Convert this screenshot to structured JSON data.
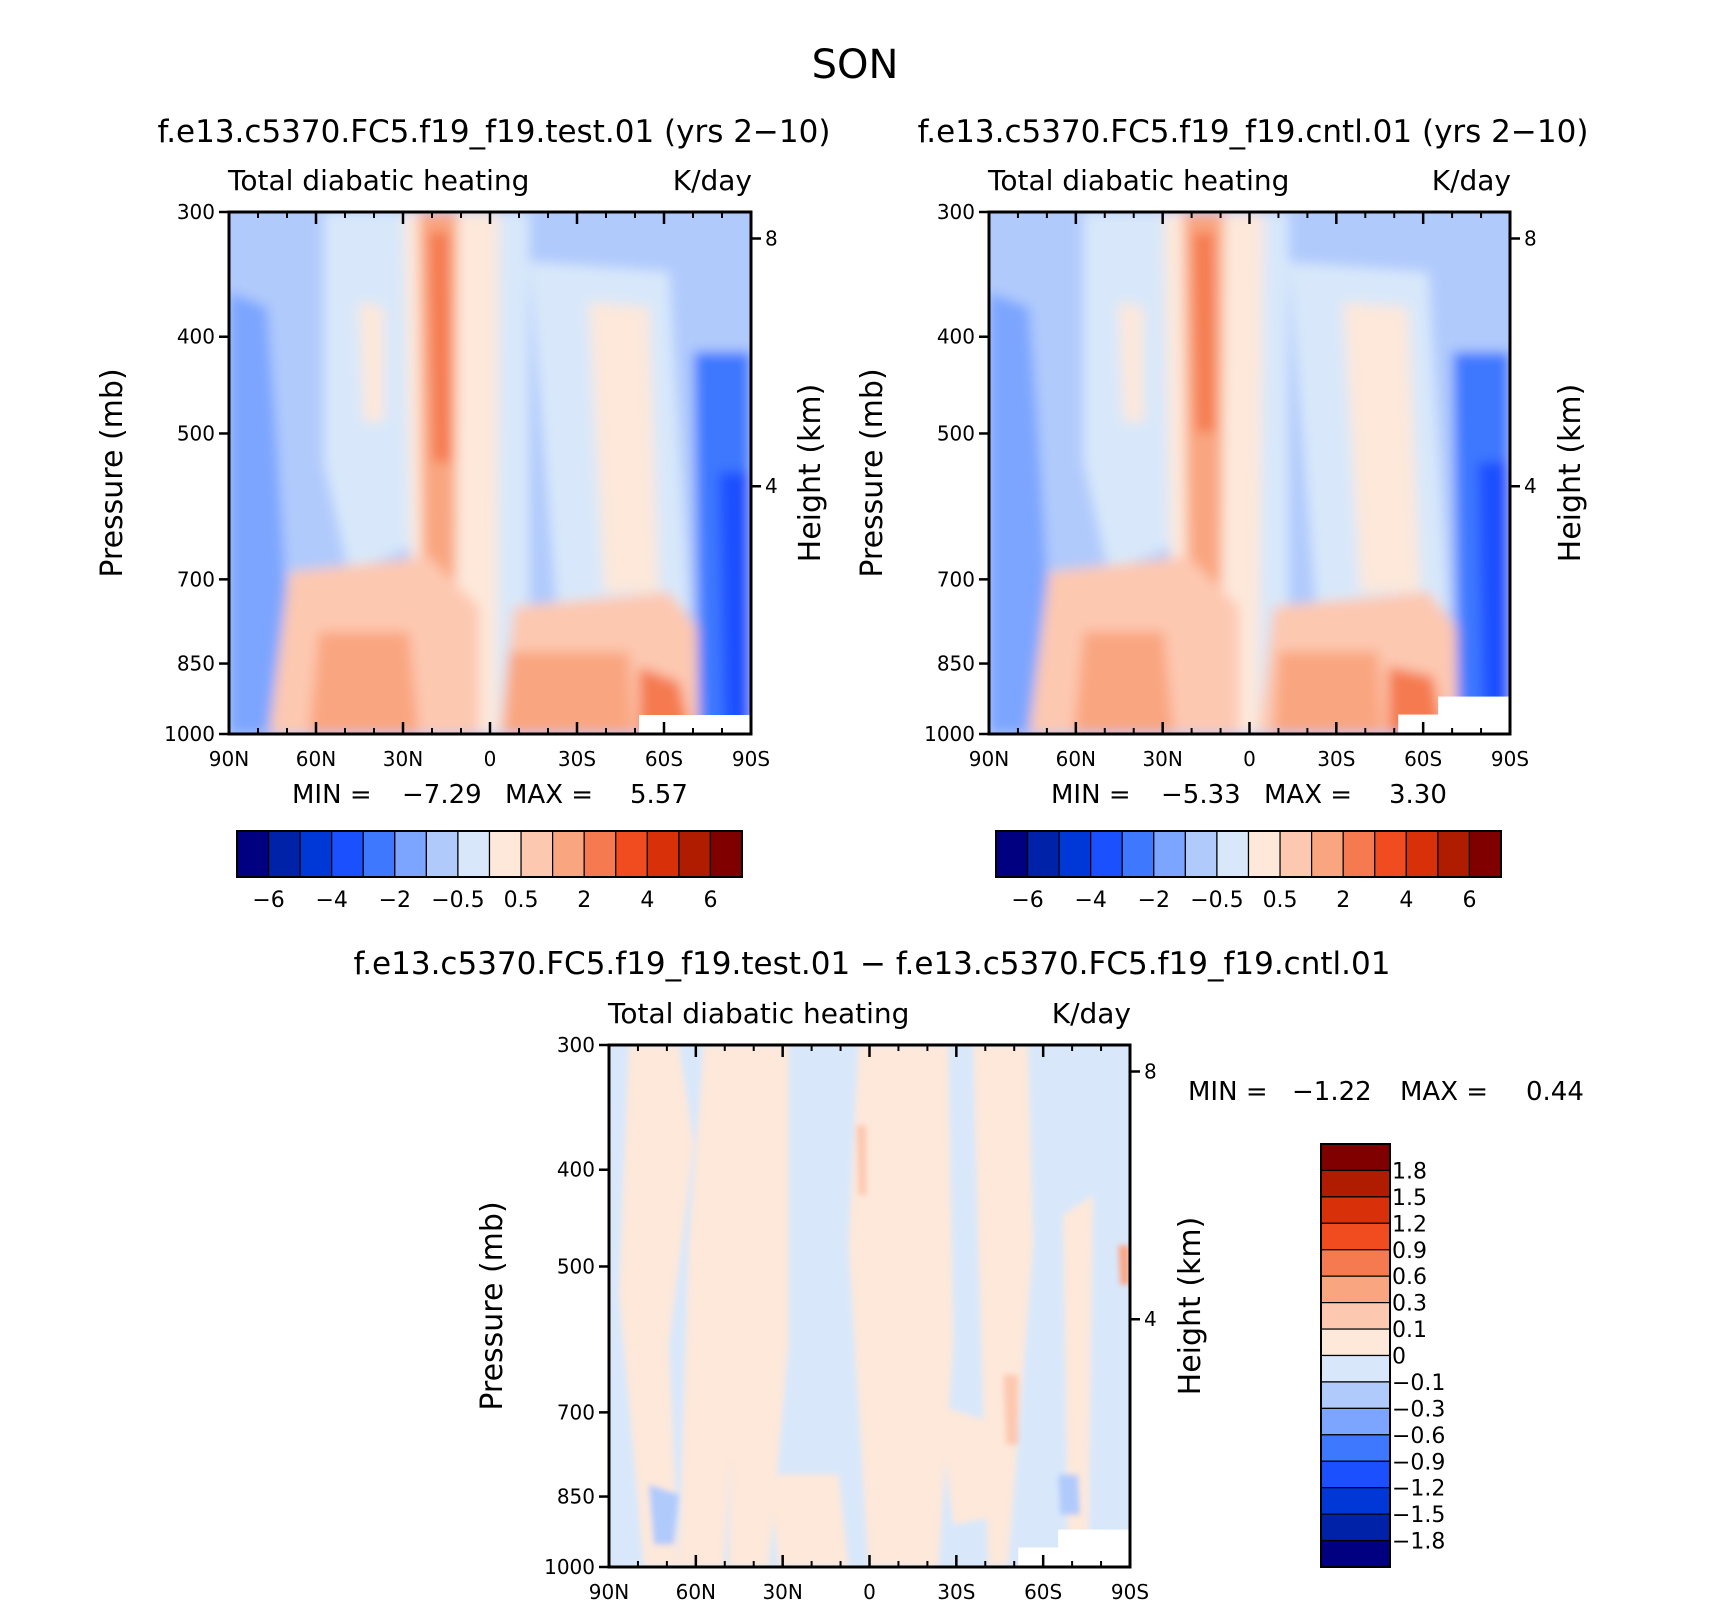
{
  "page": {
    "title": "SON"
  },
  "chart_data": [
    {
      "type": "contour",
      "title": "f.e13.c5370.FC5.f19_f19.test.01 (yrs 2−10)",
      "left_label": "Total diabatic heating",
      "right_label": "K/day",
      "xlabel": "",
      "ylabel": "Pressure (mb)",
      "y2label": "Height (km)",
      "x_ticks": [
        "90N",
        "60N",
        "30N",
        "0",
        "30S",
        "60S",
        "90S"
      ],
      "x_values": [
        90,
        60,
        30,
        0,
        -30,
        -60,
        -90
      ],
      "y_ticks": [
        300,
        400,
        500,
        700,
        850,
        1000
      ],
      "y2_ticks": [
        8,
        4
      ],
      "ylim": [
        1000,
        300
      ],
      "stats": {
        "min_label": "MIN =",
        "min": "−7.29",
        "max_label": "MAX =",
        "max": "5.57"
      },
      "colorbar": {
        "orientation": "horizontal",
        "labels": [
          "−6",
          "−4",
          "−2",
          "−0.5",
          "0.5",
          "2",
          "4",
          "6"
        ],
        "colors": [
          "#000080",
          "#0022a8",
          "#0038d8",
          "#1a50ff",
          "#3d78ff",
          "#7ca5ff",
          "#b0cafc",
          "#d8e8fa",
          "#fde8da",
          "#fdc8b0",
          "#f9a680",
          "#f57a50",
          "#f04c20",
          "#d83008",
          "#b01c00",
          "#800000"
        ]
      }
    },
    {
      "type": "contour",
      "title": "f.e13.c5370.FC5.f19_f19.cntl.01 (yrs 2−10)",
      "left_label": "Total diabatic heating",
      "right_label": "K/day",
      "xlabel": "",
      "ylabel": "Pressure (mb)",
      "y2label": "Height (km)",
      "x_ticks": [
        "90N",
        "60N",
        "30N",
        "0",
        "30S",
        "60S",
        "90S"
      ],
      "x_values": [
        90,
        60,
        30,
        0,
        -30,
        -60,
        -90
      ],
      "y_ticks": [
        300,
        400,
        500,
        700,
        850,
        1000
      ],
      "y2_ticks": [
        8,
        4
      ],
      "ylim": [
        1000,
        300
      ],
      "stats": {
        "min_label": "MIN =",
        "min": "−5.33",
        "max_label": "MAX =",
        "max": "3.30"
      },
      "colorbar": {
        "orientation": "horizontal",
        "labels": [
          "−6",
          "−4",
          "−2",
          "−0.5",
          "0.5",
          "2",
          "4",
          "6"
        ],
        "colors": [
          "#000080",
          "#0022a8",
          "#0038d8",
          "#1a50ff",
          "#3d78ff",
          "#7ca5ff",
          "#b0cafc",
          "#d8e8fa",
          "#fde8da",
          "#fdc8b0",
          "#f9a680",
          "#f57a50",
          "#f04c20",
          "#d83008",
          "#b01c00",
          "#800000"
        ]
      }
    },
    {
      "type": "contour",
      "title": "f.e13.c5370.FC5.f19_f19.test.01 − f.e13.c5370.FC5.f19_f19.cntl.01",
      "left_label": "Total diabatic heating",
      "right_label": "K/day",
      "xlabel": "",
      "ylabel": "Pressure (mb)",
      "y2label": "Height (km)",
      "x_ticks": [
        "90N",
        "60N",
        "30N",
        "0",
        "30S",
        "60S",
        "90S"
      ],
      "x_values": [
        90,
        60,
        30,
        0,
        -30,
        -60,
        -90
      ],
      "y_ticks": [
        300,
        400,
        500,
        700,
        850,
        1000
      ],
      "y2_ticks": [
        8,
        4
      ],
      "ylim": [
        1000,
        300
      ],
      "stats": {
        "min_label": "MIN =",
        "min": "−1.22",
        "max_label": "MAX =",
        "max": "0.44"
      },
      "colorbar": {
        "orientation": "vertical",
        "labels": [
          "1.8",
          "1.5",
          "1.2",
          "0.9",
          "0.6",
          "0.3",
          "0.1",
          "0",
          "−0.1",
          "−0.3",
          "−0.6",
          "−0.9",
          "−1.2",
          "−1.5",
          "−1.8"
        ],
        "colors": [
          "#800000",
          "#b01c00",
          "#d83008",
          "#f04c20",
          "#f57a50",
          "#f9a680",
          "#fdc8b0",
          "#fde8da",
          "#d8e8fa",
          "#b0cafc",
          "#7ca5ff",
          "#3d78ff",
          "#1a50ff",
          "#0038d8",
          "#0022a8",
          "#000080"
        ]
      }
    }
  ]
}
